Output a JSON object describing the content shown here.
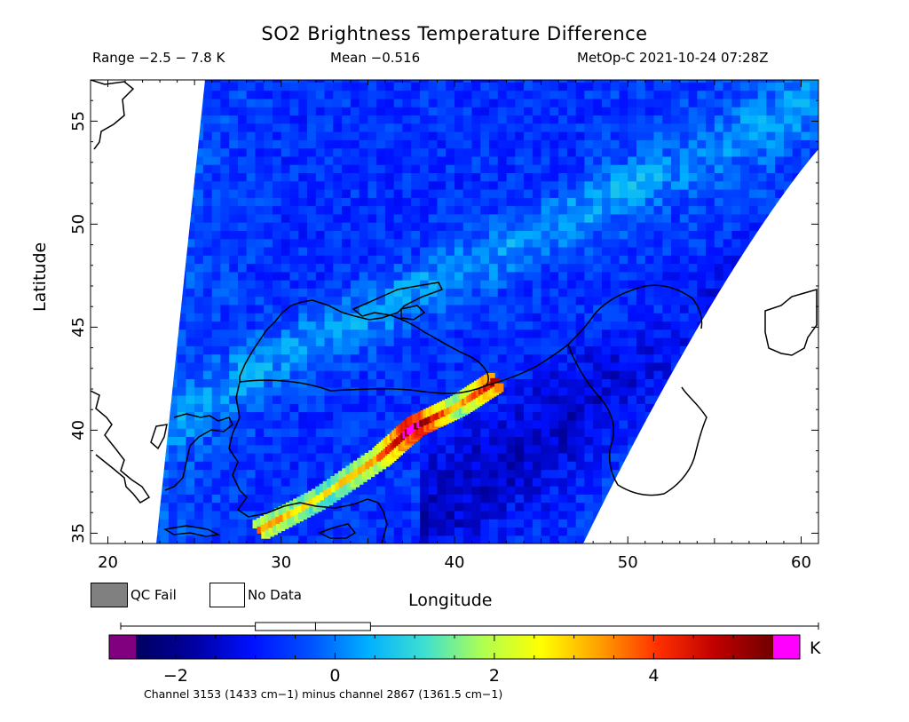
{
  "header": {
    "title": "SO2 Brightness Temperature Difference",
    "range": "Range −2.5 − 7.8 K",
    "mean": "Mean −0.516",
    "satellite": "MetOp-C 2021-10-24 07:28Z"
  },
  "legend": {
    "qc_fail": "QC Fail",
    "no_data": "No Data"
  },
  "colorbar": {
    "unit": "K",
    "ticks": [
      "−2",
      "0",
      "2",
      "4"
    ],
    "tick_values": [
      -2,
      0,
      2,
      4
    ],
    "range": [
      -2.5,
      5.5
    ],
    "note": "Channel 3153 (1433 cm−1) minus channel 2867 (1361.5 cm−1)",
    "stops": [
      "#000060",
      "#0000a0",
      "#0010ff",
      "#0050ff",
      "#00b0ff",
      "#40e0d0",
      "#b0ff50",
      "#ffff00",
      "#ffa000",
      "#ff3000",
      "#c00000",
      "#700000"
    ],
    "underflow_color": "#800080",
    "overflow_color": "#ff00ff",
    "boxplot": {
      "min": -2.5,
      "q1": -1.0,
      "median": -0.3,
      "q3": 0.0,
      "max": 7.8
    }
  },
  "chart_data": {
    "type": "heatmap",
    "title": "SO2 Brightness Temperature Difference",
    "xlabel": "Longitude",
    "ylabel": "Latitude",
    "xlim": [
      19,
      61
    ],
    "ylim": [
      34.5,
      57
    ],
    "xticks": [
      20,
      30,
      40,
      50,
      60
    ],
    "yticks": [
      35,
      40,
      45,
      50,
      55
    ],
    "x_tick_labels": [
      "20",
      "30",
      "40",
      "50",
      "60"
    ],
    "y_tick_labels": [
      "35",
      "40",
      "45",
      "50",
      "55"
    ],
    "background_mean": -0.516,
    "value_range": [
      -2.5,
      7.8
    ],
    "plume": {
      "description_points": [
        {
          "lon": 28.6,
          "lat": 35.0,
          "value": 3.5
        },
        {
          "lon": 32.0,
          "lat": 36.5,
          "value": 2.6
        },
        {
          "lon": 35.5,
          "lat": 38.5,
          "value": 3.4
        },
        {
          "lon": 37.5,
          "lat": 40.0,
          "value": 5.8
        },
        {
          "lon": 40.0,
          "lat": 41.0,
          "value": 3.0
        },
        {
          "lon": 42.2,
          "lat": 42.2,
          "value": 4.8
        }
      ]
    }
  }
}
